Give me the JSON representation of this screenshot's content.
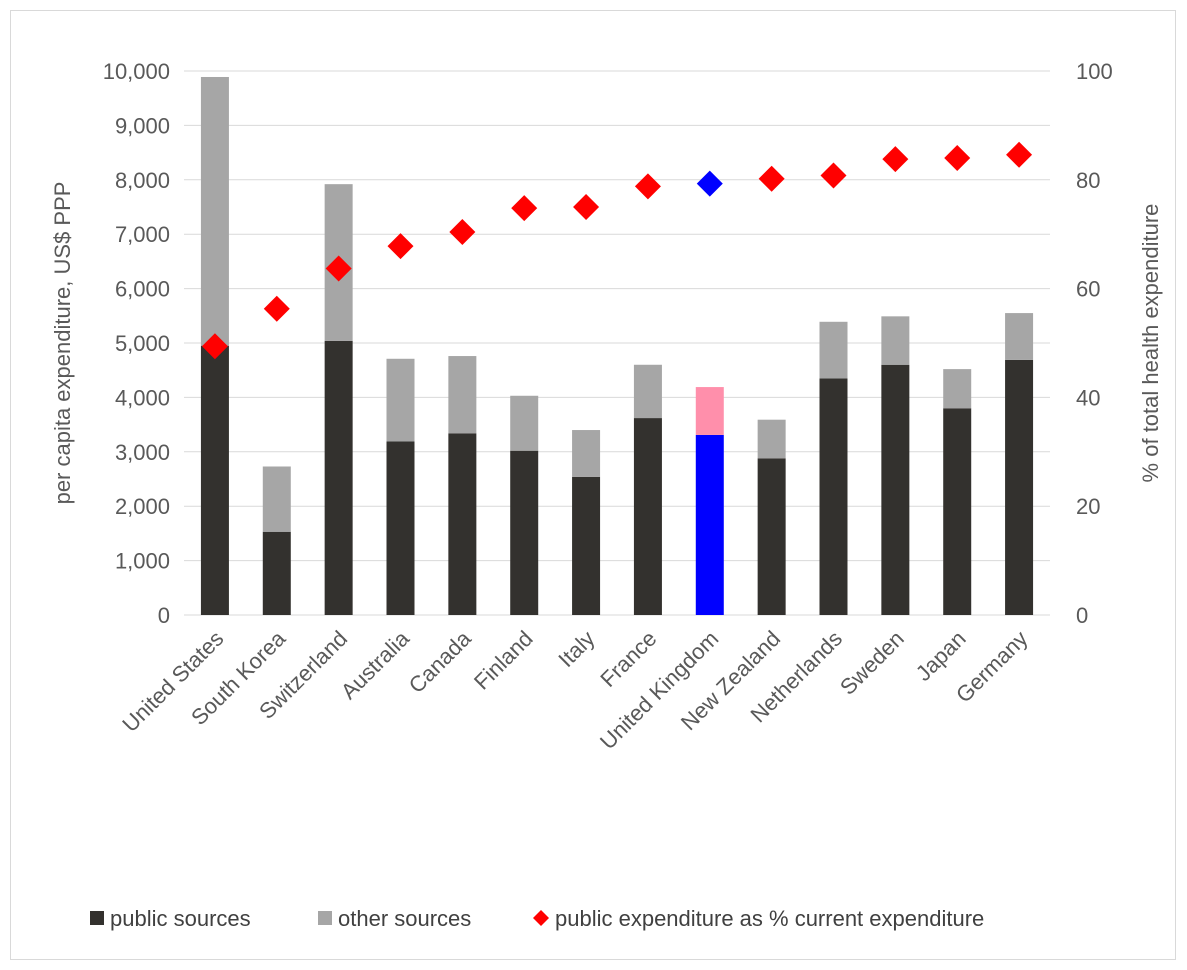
{
  "chart_data": {
    "type": "bar",
    "stacked": true,
    "categories": [
      "United States",
      "South Korea",
      "Switzerland",
      "Australia",
      "Canada",
      "Finland",
      "Italy",
      "France",
      "United Kingdom",
      "New Zealand",
      "Netherlands",
      "Sweden",
      "Japan",
      "Germany"
    ],
    "series": [
      {
        "name": "public sources",
        "type": "bar",
        "axis": "left",
        "color": "#33312e",
        "values": [
          4950,
          1530,
          5040,
          3190,
          3340,
          3020,
          2540,
          3620,
          3310,
          2880,
          4350,
          4600,
          3800,
          4690
        ]
      },
      {
        "name": "other sources",
        "type": "bar",
        "axis": "left",
        "color": "#a6a6a6",
        "values": [
          4940,
          1200,
          2880,
          1520,
          1420,
          1010,
          860,
          980,
          880,
          710,
          1040,
          890,
          720,
          860
        ]
      },
      {
        "name": "public expenditure as % current expenditure",
        "type": "scatter",
        "axis": "right",
        "color": "#ff0000",
        "marker": "diamond",
        "values": [
          49.4,
          56.3,
          63.7,
          67.8,
          70.4,
          74.8,
          75.0,
          78.8,
          79.3,
          80.2,
          80.8,
          83.8,
          84.0,
          84.6
        ]
      }
    ],
    "highlight": {
      "category": "United Kingdom",
      "public_color": "#0000ff",
      "other_color": "#ff8fab",
      "marker_color": "#0000ff"
    },
    "ylabel": "per capita expenditure, US$ PPP",
    "y2label": "% of total health expenditure",
    "ylim": [
      0,
      10000
    ],
    "y2lim": [
      0,
      100
    ],
    "yticks": [
      "0",
      "1,000",
      "2,000",
      "3,000",
      "4,000",
      "5,000",
      "6,000",
      "7,000",
      "8,000",
      "9,000",
      "10,000"
    ],
    "y2ticks": [
      "0",
      "20",
      "40",
      "60",
      "80",
      "100"
    ],
    "grid": true,
    "legend_position": "bottom"
  }
}
